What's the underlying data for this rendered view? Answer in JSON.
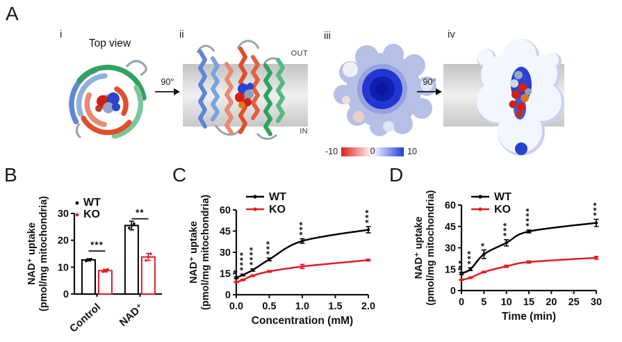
{
  "panel_a": {
    "label": "A",
    "sub_i": {
      "label": "i",
      "title": "Top view"
    },
    "rotation_arrow_1": "90°",
    "sub_ii": {
      "label": "ii",
      "membrane_out": "OUT",
      "membrane_in": "IN"
    },
    "sub_iii": {
      "label": "iii",
      "colorbar": {
        "min_label": "-10",
        "mid_label": "0",
        "max_label": "10",
        "negative_color": "#dd2016",
        "positive_color": "#1f3de0"
      }
    },
    "rotation_arrow_2": "90°",
    "sub_iv": {
      "label": "iv"
    }
  },
  "chart_data": [
    {
      "id": "B",
      "type": "bar",
      "panel_label": "B",
      "title": "",
      "ylabel_line1": "NAD⁺ uptake",
      "ylabel_line2": "(pmol/mg mitochondria)",
      "ylim": [
        0,
        30
      ],
      "yticks": [
        0,
        10,
        20,
        30
      ],
      "categories": [
        "Control",
        "NAD⁺"
      ],
      "series": [
        {
          "name": "WT",
          "color": "#000000",
          "values": [
            12.7,
            25.5
          ],
          "errors": [
            0.4,
            1.6
          ],
          "points": [
            [
              12.3,
              12.7,
              13.0
            ],
            [
              24.6,
              25.5,
              26.2
            ]
          ]
        },
        {
          "name": "KO",
          "color": "#e11d23",
          "values": [
            8.7,
            13.8
          ],
          "errors": [
            0.5,
            1.3
          ],
          "points": [
            [
              8.3,
              8.7,
              9.2
            ],
            [
              12.5,
              13.8,
              15.0
            ]
          ]
        }
      ],
      "significance": [
        {
          "label": "***",
          "line_y": 16
        },
        {
          "label": "**",
          "line_y": 28
        }
      ],
      "legend_position": "top-left",
      "grid": false
    },
    {
      "id": "C",
      "type": "line",
      "panel_label": "C",
      "title": "",
      "xlabel": "Concentration (mM)",
      "ylabel_line1": "NAD⁺ uptake",
      "ylabel_line2": "(pmol/mg mitochondria)",
      "xlim": [
        0,
        2
      ],
      "xticks": [
        0,
        0.5,
        1,
        1.5,
        2
      ],
      "xtick_labels": [
        "0.0",
        "0.5",
        "1.0",
        "1.5",
        "2.0"
      ],
      "ylim": [
        0,
        60
      ],
      "yticks": [
        0,
        15,
        30,
        45,
        60
      ],
      "x": [
        0,
        0.1,
        0.25,
        0.5,
        1,
        2
      ],
      "series": [
        {
          "name": "WT",
          "color": "#000000",
          "values": [
            12,
            14,
            17.5,
            25,
            38,
            46
          ],
          "errors": [
            0.6,
            0.6,
            0.8,
            1.0,
            1.6,
            2.2
          ]
        },
        {
          "name": "KO",
          "color": "#e11d23",
          "values": [
            9,
            10.5,
            13.5,
            16.5,
            20,
            24.5
          ],
          "errors": [
            0.4,
            0.4,
            0.5,
            0.6,
            1.5,
            0.6
          ]
        }
      ],
      "significance": [
        "*",
        "****",
        "****",
        "***",
        "***",
        "***"
      ],
      "legend_position": "top-left",
      "grid": false
    },
    {
      "id": "D",
      "type": "line",
      "panel_label": "D",
      "title": "",
      "xlabel": "Time (min)",
      "ylabel_line1": "NAD⁺ uptake",
      "ylabel_line2": "(pmol/mg mitochondria)",
      "xlim": [
        0,
        30
      ],
      "xticks": [
        0,
        5,
        10,
        15,
        20,
        25,
        30
      ],
      "xtick_labels": [
        "0",
        "5",
        "10",
        "15",
        "20",
        "25",
        "30"
      ],
      "ylim": [
        0,
        60
      ],
      "yticks": [
        0,
        15,
        30,
        45,
        60
      ],
      "x": [
        0,
        2,
        5,
        10,
        15,
        30
      ],
      "series": [
        {
          "name": "WT",
          "color": "#000000",
          "values": [
            12,
            15,
            25.5,
            33.5,
            41.5,
            47.5
          ],
          "errors": [
            0.8,
            1.0,
            3.0,
            2.2,
            1.0,
            2.5
          ]
        },
        {
          "name": "KO",
          "color": "#e11d23",
          "values": [
            7.5,
            9,
            13,
            17,
            20,
            23
          ],
          "errors": [
            0.3,
            0.3,
            0.5,
            0.8,
            0.8,
            1.0
          ]
        }
      ],
      "significance": [
        "**",
        "***",
        "*",
        "***",
        "****",
        "***"
      ],
      "legend_position": "top-left",
      "grid": false
    }
  ]
}
